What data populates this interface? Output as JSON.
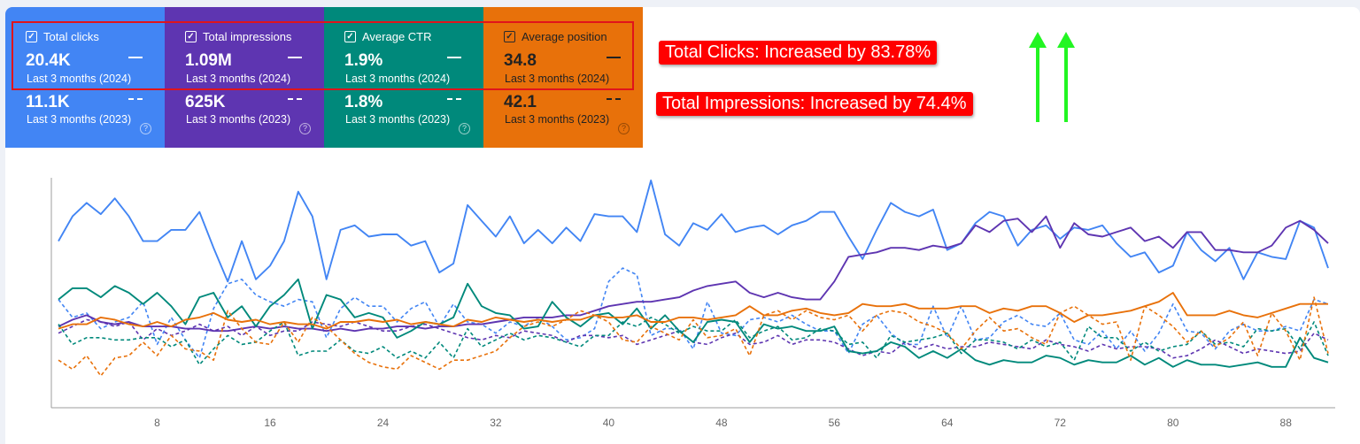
{
  "cards": [
    {
      "label": "Total clicks",
      "value_current": "20.4K",
      "period_current": "Last 3 months (2024)",
      "value_previous": "11.1K",
      "period_previous": "Last 3 months (2023)",
      "checked": true,
      "color": "#4285f4"
    },
    {
      "label": "Total impressions",
      "value_current": "1.09M",
      "period_current": "Last 3 months (2024)",
      "value_previous": "625K",
      "period_previous": "Last 3 months (2023)",
      "checked": true,
      "color": "#5e35b1"
    },
    {
      "label": "Average CTR",
      "value_current": "1.9%",
      "period_current": "Last 3 months (2024)",
      "value_previous": "1.8%",
      "period_previous": "Last 3 months (2023)",
      "checked": true,
      "color": "#00897b"
    },
    {
      "label": "Average position",
      "value_current": "34.8",
      "period_current": "Last 3 months (2024)",
      "value_previous": "42.1",
      "period_previous": "Last 3 months (2023)",
      "checked": true,
      "color": "#e8710a"
    }
  ],
  "icons": {
    "checkbox": "checkbox-checked-icon",
    "help": "help-circle-icon",
    "arrow": "green-up-arrow-icon"
  },
  "help_glyph": "?",
  "check_glyph": "✓",
  "annotations": {
    "clicks": "Total Clicks: Increased by 83.78%",
    "impressions": "Total Impressions: Increased by 74.4%"
  },
  "chart_data": {
    "type": "line",
    "x_ticks": [
      "8",
      "16",
      "24",
      "32",
      "40",
      "48",
      "56",
      "64",
      "72",
      "80",
      "88"
    ],
    "x_tick_values": [
      8,
      16,
      24,
      32,
      40,
      48,
      56,
      64,
      72,
      80,
      88
    ],
    "xlim": [
      0.5,
      91.5
    ],
    "ylim": [
      0,
      100
    ],
    "y_axis_labels": "hidden",
    "grid": false,
    "legend": "none",
    "series": [
      {
        "color": "#4285f4",
        "dash": false,
        "values": [
          73,
          84,
          90,
          85,
          92,
          84,
          73,
          73,
          78,
          78,
          86,
          70,
          55,
          73,
          56,
          62,
          73,
          95,
          84,
          56,
          78,
          80,
          75,
          76,
          76,
          71,
          73,
          59,
          63,
          89,
          82,
          75,
          84,
          72,
          78,
          72,
          79,
          73,
          85,
          84,
          84,
          77,
          100,
          76,
          71,
          81,
          78,
          85,
          77,
          79,
          80,
          76,
          80,
          82,
          86,
          86,
          75,
          65,
          78,
          90,
          86,
          84,
          87,
          69,
          72,
          81,
          86,
          84,
          71,
          78,
          80,
          74,
          79,
          78,
          80,
          72,
          66,
          68,
          59,
          62,
          77,
          69,
          64,
          70,
          56,
          68,
          66,
          65,
          82,
          79,
          61
        ]
      },
      {
        "color": "#4285f4",
        "dash": true,
        "values": [
          47,
          39,
          41,
          34,
          37,
          39,
          46,
          27,
          39,
          29,
          21,
          43,
          54,
          56,
          49,
          46,
          44,
          47,
          46,
          30,
          43,
          48,
          44,
          44,
          37,
          43,
          46,
          35,
          45,
          37,
          36,
          32,
          37,
          35,
          39,
          35,
          29,
          30,
          34,
          55,
          61,
          58,
          31,
          34,
          34,
          25,
          46,
          32,
          31,
          38,
          39,
          37,
          40,
          36,
          33,
          33,
          23,
          36,
          40,
          32,
          27,
          27,
          44,
          30,
          44,
          29,
          30,
          37,
          40,
          36,
          35,
          41,
          29,
          27,
          33,
          25,
          33,
          24,
          32,
          45,
          33,
          32,
          25,
          33,
          36,
          33,
          33,
          35,
          33,
          47,
          45
        ]
      },
      {
        "color": "#5e35b1",
        "dash": false,
        "values": [
          35,
          38,
          40,
          37,
          36,
          37,
          35,
          35,
          35,
          34,
          34,
          33,
          33,
          34,
          35,
          34,
          35,
          34,
          34,
          33,
          34,
          33,
          34,
          34,
          35,
          35,
          34,
          35,
          35,
          36,
          36,
          37,
          38,
          39,
          39,
          39,
          40,
          40,
          42,
          44,
          45,
          46,
          46,
          47,
          48,
          51,
          53,
          54,
          55,
          50,
          48,
          50,
          48,
          47,
          47,
          55,
          66,
          67,
          68,
          70,
          70,
          69,
          71,
          70,
          72,
          80,
          77,
          82,
          83,
          77,
          84,
          70,
          81,
          76,
          75,
          77,
          79,
          73,
          75,
          70,
          77,
          77,
          69,
          69,
          68,
          68,
          71,
          79,
          82,
          78,
          72
        ]
      },
      {
        "color": "#5e35b1",
        "dash": true,
        "values": [
          32,
          35,
          38,
          37,
          35,
          37,
          29,
          34,
          31,
          33,
          36,
          33,
          35,
          31,
          35,
          31,
          33,
          33,
          37,
          36,
          35,
          37,
          35,
          33,
          33,
          35,
          36,
          34,
          32,
          30,
          29,
          31,
          30,
          33,
          32,
          31,
          28,
          31,
          31,
          30,
          31,
          27,
          29,
          31,
          33,
          28,
          27,
          30,
          32,
          27,
          28,
          31,
          27,
          29,
          29,
          28,
          25,
          22,
          24,
          23,
          28,
          25,
          27,
          25,
          26,
          26,
          28,
          27,
          26,
          25,
          29,
          27,
          26,
          24,
          27,
          25,
          26,
          26,
          25,
          21,
          22,
          25,
          29,
          26,
          23,
          25,
          24,
          23,
          24,
          32,
          29
        ]
      },
      {
        "color": "#00897b",
        "dash": false,
        "values": [
          47,
          52,
          52,
          48,
          53,
          50,
          45,
          50,
          44,
          36,
          48,
          50,
          39,
          44,
          35,
          44,
          49,
          56,
          34,
          49,
          47,
          39,
          41,
          39,
          30,
          33,
          37,
          36,
          39,
          54,
          44,
          41,
          40,
          34,
          35,
          46,
          39,
          35,
          40,
          41,
          36,
          43,
          34,
          40,
          33,
          28,
          37,
          38,
          37,
          28,
          36,
          34,
          35,
          33,
          33,
          35,
          24,
          23,
          24,
          28,
          26,
          21,
          24,
          21,
          25,
          20,
          18,
          20,
          19,
          19,
          22,
          21,
          18,
          20,
          19,
          19,
          22,
          18,
          21,
          17,
          20,
          18,
          18,
          17,
          18,
          19,
          17,
          17,
          30,
          21,
          19
        ]
      },
      {
        "color": "#00897b",
        "dash": true,
        "values": [
          36,
          27,
          30,
          30,
          29,
          29,
          30,
          30,
          26,
          29,
          18,
          25,
          31,
          27,
          28,
          33,
          37,
          22,
          24,
          24,
          29,
          24,
          23,
          26,
          21,
          24,
          21,
          28,
          21,
          34,
          26,
          29,
          32,
          29,
          31,
          30,
          28,
          26,
          31,
          31,
          37,
          35,
          39,
          36,
          32,
          35,
          33,
          33,
          38,
          30,
          33,
          35,
          29,
          30,
          34,
          33,
          27,
          28,
          21,
          31,
          28,
          29,
          30,
          32,
          23,
          29,
          29,
          28,
          25,
          29,
          26,
          28,
          20,
          35,
          30,
          30,
          24,
          28,
          24,
          26,
          27,
          33,
          27,
          28,
          26,
          34,
          33,
          34,
          25,
          37,
          22
        ]
      },
      {
        "color": "#e8710a",
        "dash": false,
        "values": [
          34,
          36,
          36,
          39,
          38,
          36,
          35,
          37,
          35,
          38,
          39,
          41,
          38,
          37,
          38,
          36,
          37,
          36,
          36,
          34,
          37,
          37,
          38,
          37,
          38,
          36,
          37,
          36,
          35,
          38,
          37,
          39,
          38,
          37,
          38,
          37,
          38,
          38,
          40,
          39,
          39,
          40,
          37,
          37,
          39,
          39,
          38,
          39,
          40,
          44,
          40,
          40,
          42,
          43,
          41,
          40,
          41,
          45,
          44,
          44,
          45,
          43,
          43,
          43,
          44,
          44,
          41,
          43,
          42,
          44,
          44,
          41,
          37,
          40,
          40,
          41,
          42,
          44,
          46,
          50,
          40,
          40,
          40,
          42,
          40,
          39,
          41,
          43,
          45,
          45,
          45
        ]
      },
      {
        "color": "#e8710a",
        "dash": true,
        "values": [
          20,
          16,
          22,
          13,
          21,
          22,
          28,
          22,
          31,
          25,
          24,
          20,
          42,
          34,
          28,
          27,
          37,
          28,
          39,
          35,
          29,
          23,
          19,
          17,
          16,
          22,
          19,
          16,
          20,
          20,
          22,
          24,
          30,
          35,
          37,
          35,
          38,
          42,
          40,
          37,
          29,
          28,
          35,
          32,
          29,
          38,
          30,
          31,
          34,
          22,
          40,
          42,
          38,
          42,
          39,
          38,
          40,
          33,
          40,
          42,
          41,
          37,
          35,
          32,
          25,
          33,
          39,
          33,
          34,
          30,
          27,
          41,
          44,
          40,
          36,
          37,
          20,
          44,
          40,
          35,
          28,
          33,
          26,
          30,
          37,
          22,
          41,
          33,
          20,
          48,
          23
        ]
      }
    ]
  }
}
